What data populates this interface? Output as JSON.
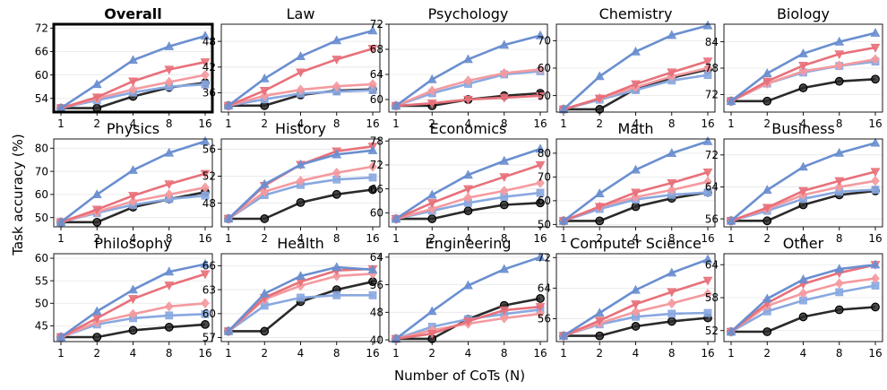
{
  "figure": {
    "xlabel": "Number of CoTs (N)",
    "ylabel": "Task accuracy (%)"
  },
  "series_styles": [
    {
      "key": "s1",
      "color": "#2a2a2a",
      "marker": "circle"
    },
    {
      "key": "s2",
      "color": "#89a8e0",
      "marker": "square"
    },
    {
      "key": "s3",
      "color": "#f49a9f",
      "marker": "diamond"
    },
    {
      "key": "s4",
      "color": "#e8707a",
      "marker": "triangle-down"
    },
    {
      "key": "s5",
      "color": "#6a8fd0",
      "marker": "triangle-up"
    }
  ],
  "chart_data": [
    {
      "type": "line",
      "title": "Overall",
      "highlight": true,
      "x": [
        "1",
        "2",
        "4",
        "8",
        "16"
      ],
      "ylim": [
        50.5,
        73
      ],
      "yticks": [
        54,
        60,
        66,
        72
      ],
      "series": [
        {
          "values": [
            51.5,
            51.5,
            54.5,
            56.8,
            58.0
          ]
        },
        {
          "values": [
            51.5,
            53.5,
            55.5,
            57.0,
            57.6
          ]
        },
        {
          "values": [
            51.5,
            54.0,
            56.3,
            58.2,
            60.0
          ]
        },
        {
          "values": [
            51.5,
            54.3,
            58.4,
            61.4,
            63.3
          ]
        },
        {
          "values": [
            51.5,
            57.6,
            63.8,
            67.3,
            70.0
          ]
        }
      ]
    },
    {
      "type": "line",
      "title": "Law",
      "x": [
        "1",
        "2",
        "4",
        "8",
        "16"
      ],
      "ylim": [
        31.5,
        52
      ],
      "yticks": [
        36,
        42,
        48
      ],
      "series": [
        {
          "values": [
            33,
            33,
            35.5,
            36.5,
            36.8
          ]
        },
        {
          "values": [
            33,
            34.5,
            35.8,
            36.3,
            36.6
          ]
        },
        {
          "values": [
            33,
            35.3,
            36.7,
            37.5,
            38.0
          ]
        },
        {
          "values": [
            33,
            36.5,
            40.8,
            43.8,
            46.3
          ]
        },
        {
          "values": [
            33,
            39.3,
            44.5,
            48.2,
            50.5
          ]
        }
      ]
    },
    {
      "type": "line",
      "title": "Psychology",
      "x": [
        "1",
        "2",
        "4",
        "8",
        "16"
      ],
      "ylim": [
        58,
        72
      ],
      "yticks": [
        60,
        64,
        68,
        72
      ],
      "series": [
        {
          "values": [
            59,
            59,
            60.0,
            60.6,
            61.0
          ]
        },
        {
          "values": [
            59,
            61.0,
            62.5,
            64.0,
            64.5
          ]
        },
        {
          "values": [
            59,
            61.4,
            63.0,
            64.2,
            64.8
          ]
        },
        {
          "values": [
            59,
            59.4,
            60.0,
            60.3,
            60.6
          ]
        },
        {
          "values": [
            59,
            63.2,
            66.4,
            68.7,
            70.2
          ]
        }
      ]
    },
    {
      "type": "line",
      "title": "Chemistry",
      "x": [
        "1",
        "2",
        "4",
        "8",
        "16"
      ],
      "ylim": [
        44,
        76
      ],
      "yticks": [
        50,
        60,
        70
      ],
      "series": [
        {
          "values": [
            45,
            45,
            52.5,
            56.5,
            59.5
          ]
        },
        {
          "values": [
            45,
            48.5,
            52,
            55.5,
            57.5
          ]
        },
        {
          "values": [
            45,
            49,
            53,
            57,
            60.0
          ]
        },
        {
          "values": [
            45,
            49,
            54.2,
            58.5,
            62.5
          ]
        },
        {
          "values": [
            45,
            57.0,
            66.0,
            72.0,
            75.5
          ]
        }
      ]
    },
    {
      "type": "line",
      "title": "Biology",
      "x": [
        "1",
        "2",
        "4",
        "8",
        "16"
      ],
      "ylim": [
        68,
        88
      ],
      "yticks": [
        72,
        78,
        84
      ],
      "series": [
        {
          "values": [
            70.5,
            70.5,
            73.5,
            75.0,
            75.5
          ]
        },
        {
          "values": [
            70.5,
            74.5,
            77.0,
            78.5,
            79.5
          ]
        },
        {
          "values": [
            70.5,
            74.5,
            77.3,
            78.6,
            80.0
          ]
        },
        {
          "values": [
            70.5,
            75.0,
            78.6,
            81.2,
            82.7
          ]
        },
        {
          "values": [
            70.5,
            76.8,
            81.3,
            84.0,
            86.0
          ]
        }
      ]
    },
    {
      "type": "line",
      "title": "Physics",
      "x": [
        "1",
        "2",
        "4",
        "8",
        "16"
      ],
      "ylim": [
        46,
        84
      ],
      "yticks": [
        50,
        60,
        70,
        80
      ],
      "series": [
        {
          "values": [
            48,
            48,
            54.5,
            58,
            61.0
          ]
        },
        {
          "values": [
            48,
            52,
            55.5,
            58,
            59.5
          ]
        },
        {
          "values": [
            48,
            52.5,
            57,
            60,
            63.0
          ]
        },
        {
          "values": [
            48,
            53.5,
            59.5,
            64.5,
            69.0
          ]
        },
        {
          "values": [
            48,
            60,
            70.5,
            78,
            83.0
          ]
        }
      ]
    },
    {
      "type": "line",
      "title": "History",
      "x": [
        "1",
        "2",
        "4",
        "8",
        "16"
      ],
      "ylim": [
        44.5,
        57.5
      ],
      "yticks": [
        48,
        52,
        56
      ],
      "series": [
        {
          "values": [
            45.7,
            45.7,
            48.1,
            49.3,
            50.0
          ]
        },
        {
          "values": [
            45.7,
            49.2,
            50.7,
            51.5,
            51.8
          ]
        },
        {
          "values": [
            45.7,
            49.7,
            51.3,
            52.5,
            53.4
          ]
        },
        {
          "values": [
            45.7,
            50.6,
            53.7,
            55.7,
            56.4
          ]
        },
        {
          "values": [
            45.7,
            50.8,
            53.7,
            55.2,
            55.8
          ]
        }
      ]
    },
    {
      "type": "line",
      "title": "Economics",
      "x": [
        "1",
        "2",
        "4",
        "8",
        "16"
      ],
      "ylim": [
        56.5,
        78.5
      ],
      "yticks": [
        60,
        66,
        72,
        78
      ],
      "series": [
        {
          "values": [
            58.5,
            58.5,
            60.5,
            62.0,
            62.5
          ]
        },
        {
          "values": [
            58.5,
            60.5,
            62.5,
            64.0,
            65.0
          ]
        },
        {
          "values": [
            58.5,
            61.0,
            63.8,
            65.5,
            67.5
          ]
        },
        {
          "values": [
            58.5,
            62.5,
            66.0,
            69.0,
            72.0
          ]
        },
        {
          "values": [
            58.5,
            64.5,
            69.5,
            73.0,
            76.0
          ]
        }
      ]
    },
    {
      "type": "line",
      "title": "Math",
      "x": [
        "1",
        "2",
        "4",
        "8",
        "16"
      ],
      "ylim": [
        49,
        86
      ],
      "yticks": [
        50,
        60,
        70,
        80
      ],
      "series": [
        {
          "values": [
            51.5,
            51.5,
            57.5,
            61.0,
            63.5
          ]
        },
        {
          "values": [
            51.5,
            56.5,
            60.5,
            62.5,
            63.5
          ]
        },
        {
          "values": [
            51.5,
            57.5,
            61.5,
            64.5,
            68.0
          ]
        },
        {
          "values": [
            51.5,
            57.5,
            63.5,
            67.5,
            72.0
          ]
        },
        {
          "values": [
            51.5,
            63,
            73,
            80,
            85.0
          ]
        }
      ]
    },
    {
      "type": "line",
      "title": "Business",
      "x": [
        "1",
        "2",
        "4",
        "8",
        "16"
      ],
      "ylim": [
        54,
        76
      ],
      "yticks": [
        56,
        64,
        72
      ],
      "series": [
        {
          "values": [
            55.5,
            55.5,
            59.5,
            62.0,
            63.0
          ]
        },
        {
          "values": [
            55.5,
            58.0,
            61.0,
            62.8,
            63.3
          ]
        },
        {
          "values": [
            55.5,
            58.5,
            62.0,
            64.0,
            65.5
          ]
        },
        {
          "values": [
            55.5,
            58.8,
            63.0,
            65.5,
            67.8
          ]
        },
        {
          "values": [
            55.5,
            63.2,
            69.0,
            72.5,
            75.0
          ]
        }
      ]
    },
    {
      "type": "line",
      "title": "Philosophy",
      "x": [
        "1",
        "2",
        "4",
        "8",
        "16"
      ],
      "ylim": [
        41.5,
        61
      ],
      "yticks": [
        45,
        50,
        55,
        60
      ],
      "series": [
        {
          "values": [
            42.5,
            42.5,
            44.0,
            44.7,
            45.3
          ]
        },
        {
          "values": [
            42.5,
            45.3,
            46.7,
            47.3,
            47.6
          ]
        },
        {
          "values": [
            42.5,
            45.8,
            47.6,
            49.3,
            50.0
          ]
        },
        {
          "values": [
            42.5,
            46.7,
            51.0,
            54.0,
            56.5
          ]
        },
        {
          "values": [
            42.5,
            48.2,
            53.0,
            57.0,
            58.7
          ]
        }
      ]
    },
    {
      "type": "line",
      "title": "Health",
      "x": [
        "1",
        "2",
        "4",
        "8",
        "16"
      ],
      "ylim": [
        56.5,
        67.5
      ],
      "yticks": [
        57,
        60,
        63,
        66
      ],
      "series": [
        {
          "values": [
            57.8,
            57.8,
            61.5,
            63.0,
            64.0
          ]
        },
        {
          "values": [
            57.8,
            61.0,
            62.0,
            62.3,
            62.3
          ]
        },
        {
          "values": [
            57.8,
            61.8,
            63.5,
            64.7,
            65.0
          ]
        },
        {
          "values": [
            57.8,
            62.0,
            64.0,
            65.4,
            65.6
          ]
        },
        {
          "values": [
            57.8,
            62.5,
            64.7,
            65.8,
            65.5
          ]
        }
      ]
    },
    {
      "type": "line",
      "title": "Engineering",
      "x": [
        "1",
        "2",
        "4",
        "8",
        "16"
      ],
      "ylim": [
        39.5,
        65
      ],
      "yticks": [
        40,
        48,
        56,
        64
      ],
      "series": [
        {
          "values": [
            40.3,
            40.3,
            46.0,
            50.0,
            52.0
          ]
        },
        {
          "values": [
            40.3,
            43.8,
            46.0,
            47.5,
            48.8
          ]
        },
        {
          "values": [
            40.3,
            42.8,
            44.7,
            46.3,
            47.6
          ]
        },
        {
          "values": [
            40.3,
            41.8,
            45.4,
            48.6,
            49.6
          ]
        },
        {
          "values": [
            40.3,
            48.3,
            55.8,
            60.5,
            64.0
          ]
        }
      ]
    },
    {
      "type": "line",
      "title": "Computer Science",
      "x": [
        "1",
        "2",
        "4",
        "8",
        "16"
      ],
      "ylim": [
        50,
        73
      ],
      "yticks": [
        56,
        64,
        72
      ],
      "series": [
        {
          "values": [
            51.5,
            51.5,
            54.0,
            55.3,
            56.2
          ]
        },
        {
          "values": [
            51.5,
            54.5,
            56.5,
            57.3,
            57.5
          ]
        },
        {
          "values": [
            51.5,
            54.8,
            57.8,
            60.0,
            62.5
          ]
        },
        {
          "values": [
            51.5,
            55.5,
            59.8,
            63.0,
            66.0
          ]
        },
        {
          "values": [
            51.5,
            57.5,
            63.5,
            68.0,
            71.5
          ]
        }
      ]
    },
    {
      "type": "line",
      "title": "Other",
      "x": [
        "1",
        "2",
        "4",
        "8",
        "16"
      ],
      "ylim": [
        50,
        66
      ],
      "yticks": [
        52,
        58,
        64
      ],
      "series": [
        {
          "values": [
            51.8,
            51.8,
            54.5,
            55.8,
            56.3
          ]
        },
        {
          "values": [
            51.8,
            55.5,
            57.5,
            59.0,
            60.2
          ]
        },
        {
          "values": [
            51.8,
            56.5,
            58.8,
            60.6,
            61.5
          ]
        },
        {
          "values": [
            51.8,
            57.0,
            60.5,
            62.5,
            64.0
          ]
        },
        {
          "values": [
            51.8,
            57.8,
            61.3,
            63.2,
            64.0
          ]
        }
      ]
    }
  ]
}
